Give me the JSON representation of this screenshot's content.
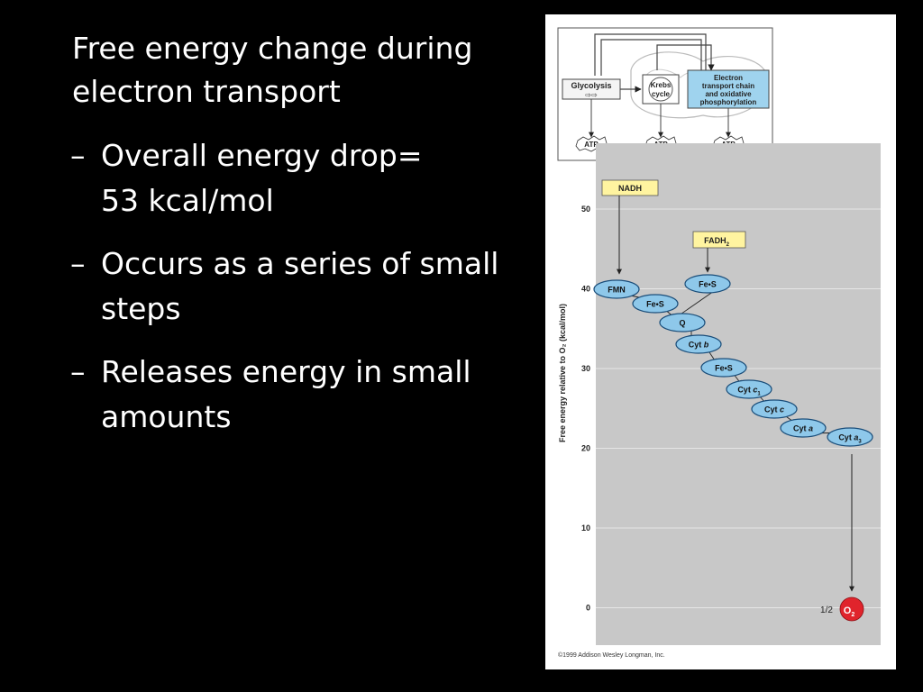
{
  "slide": {
    "title_line1": "Free energy change during",
    "title_line2": "electron transport",
    "bullets": [
      {
        "dash": "–",
        "line1": "Overall energy drop=",
        "line2": "53 kcal/mol"
      },
      {
        "dash": "–",
        "line1": "Occurs as a series of small",
        "line2": "steps"
      },
      {
        "dash": "–",
        "line1": "Releases energy in small",
        "line2": "amounts"
      }
    ]
  },
  "overview": {
    "glycolysis": "Glycolysis",
    "krebs_line1": "Krebs",
    "krebs_line2": "cycle",
    "etc_line1": "Electron",
    "etc_line2": "transport chain",
    "etc_line3": "and oxidative",
    "etc_line4": "phosphorylation",
    "atp": "ATP"
  },
  "diagram": {
    "y_axis_label": "Free energy relative to O₂ (kcal/mol)",
    "y_ticks": [
      "50",
      "40",
      "30",
      "20",
      "10",
      "0"
    ],
    "nadh": "NADH",
    "fadh2": "FADH",
    "fadh2_sub": "2",
    "o2_prefix": "1/2",
    "o2": "O",
    "o2_sub": "2",
    "copyright": "©1999 Addison Wesley Longman, Inc.",
    "carriers": [
      {
        "name": "FMN",
        "italic": "",
        "sub": ""
      },
      {
        "name": "Fe•S",
        "italic": "",
        "sub": ""
      },
      {
        "name": "Fe•S",
        "italic": "",
        "sub": ""
      },
      {
        "name": "Q",
        "italic": "",
        "sub": ""
      },
      {
        "name": "Cyt ",
        "italic": "b",
        "sub": ""
      },
      {
        "name": "Fe•S",
        "italic": "",
        "sub": ""
      },
      {
        "name": "Cyt ",
        "italic": "c",
        "sub": "1"
      },
      {
        "name": "Cyt ",
        "italic": "c",
        "sub": ""
      },
      {
        "name": "Cyt ",
        "italic": "a",
        "sub": ""
      },
      {
        "name": "Cyt ",
        "italic": "a",
        "sub": "3"
      }
    ]
  },
  "colors": {
    "background": "#000000",
    "text": "#ffffff",
    "panel_gray": "#c8c8c8",
    "carrier_fill": "#8ec8ea",
    "carrier_stroke": "#1b4e7a",
    "label_yellow": "#fff4a0",
    "o2_red": "#e0242c",
    "etc_blue": "#9fd3ee"
  }
}
